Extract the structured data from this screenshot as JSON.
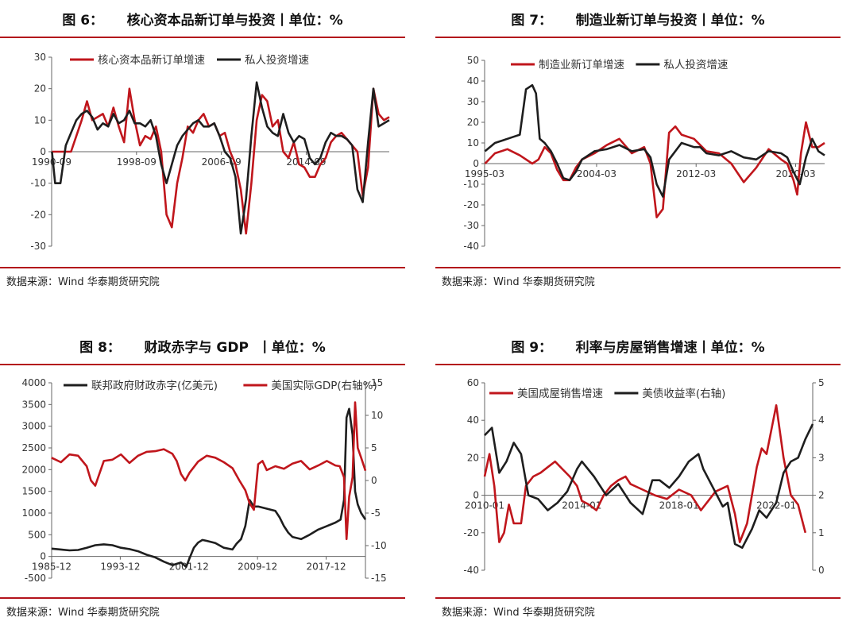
{
  "source_label": "数据来源：Wind 华泰期货研究院",
  "colors": {
    "red": "#c0161c",
    "black": "#1e1e1e",
    "rule": "#b3141b"
  },
  "chart_data": [
    {
      "id": "fig6",
      "type": "line",
      "title": "图 6：     核心资本品新订单与投资丨单位：%",
      "x_ticks": [
        "1990-09",
        "1998-09",
        "2006-09",
        "2014-09"
      ],
      "x_range": [
        1990.67,
        2022.5
      ],
      "x_tick_pos": [
        1990.67,
        1998.67,
        2006.67,
        2014.67
      ],
      "ylim": [
        -30,
        30
      ],
      "y_ticks": [
        -30,
        -20,
        -10,
        0,
        10,
        20,
        30
      ],
      "legend": "top-left",
      "series": [
        {
          "name": "核心资本品新订单增速",
          "color": "#c0161c",
          "axis": "left",
          "x": [
            1990.7,
            1991.5,
            1992.0,
            1992.5,
            1993.0,
            1993.5,
            1994.0,
            1994.5,
            1995.0,
            1995.5,
            1996.0,
            1996.5,
            1997.0,
            1997.5,
            1998.0,
            1998.5,
            1999.0,
            1999.5,
            2000.0,
            2000.5,
            2001.0,
            2001.5,
            2002.0,
            2002.5,
            2003.0,
            2003.5,
            2004.0,
            2004.5,
            2005.0,
            2005.5,
            2006.0,
            2006.5,
            2007.0,
            2007.5,
            2008.0,
            2008.5,
            2009.0,
            2009.5,
            2010.0,
            2010.5,
            2011.0,
            2011.5,
            2012.0,
            2012.5,
            2013.0,
            2013.5,
            2014.0,
            2014.5,
            2015.0,
            2015.5,
            2016.0,
            2016.5,
            2017.0,
            2017.5,
            2018.0,
            2018.5,
            2019.0,
            2019.5,
            2020.0,
            2020.5,
            2021.0,
            2021.5,
            2022.0,
            2022.5
          ],
          "y": [
            0,
            0,
            0,
            0,
            5,
            10,
            16,
            10,
            11,
            12,
            8,
            14,
            8,
            3,
            20,
            10,
            2,
            5,
            4,
            8,
            0,
            -20,
            -24,
            -10,
            -2,
            8,
            6,
            10,
            12,
            8,
            9,
            5,
            6,
            0,
            -4,
            -12,
            -26,
            -10,
            10,
            18,
            16,
            8,
            10,
            0,
            -2,
            3,
            -4,
            -5,
            -8,
            -8,
            -4,
            -2,
            3,
            5,
            6,
            4,
            2,
            0,
            -14,
            -5,
            20,
            12,
            10,
            11
          ]
        },
        {
          "name": "私人投资增速",
          "color": "#1e1e1e",
          "axis": "left",
          "x": [
            1990.7,
            1991.0,
            1991.5,
            1992.0,
            1992.5,
            1993.0,
            1993.5,
            1994.0,
            1994.5,
            1995.0,
            1995.5,
            1996.0,
            1996.5,
            1997.0,
            1997.5,
            1998.0,
            1998.5,
            1999.0,
            1999.5,
            2000.0,
            2000.5,
            2001.0,
            2001.5,
            2002.0,
            2002.5,
            2003.0,
            2003.5,
            2004.0,
            2004.5,
            2005.0,
            2005.5,
            2006.0,
            2006.5,
            2007.0,
            2007.5,
            2008.0,
            2008.5,
            2009.0,
            2009.5,
            2010.0,
            2010.5,
            2011.0,
            2011.5,
            2012.0,
            2012.5,
            2013.0,
            2013.5,
            2014.0,
            2014.5,
            2015.0,
            2015.5,
            2016.0,
            2016.5,
            2017.0,
            2017.5,
            2018.0,
            2018.5,
            2019.0,
            2019.5,
            2020.0,
            2020.5,
            2021.0,
            2021.5,
            2022.0,
            2022.5
          ],
          "y": [
            0,
            -10,
            -10,
            2,
            6,
            10,
            12,
            13,
            11,
            7,
            9,
            8,
            12,
            9,
            10,
            13,
            9,
            9,
            8,
            10,
            5,
            -4,
            -10,
            -4,
            2,
            5,
            7,
            9,
            10,
            8,
            8,
            9,
            5,
            0,
            -2,
            -8,
            -26,
            -15,
            5,
            22,
            14,
            8,
            6,
            5,
            12,
            6,
            3,
            5,
            4,
            -2,
            -4,
            -2,
            3,
            6,
            5,
            5,
            4,
            2,
            -12,
            -16,
            3,
            20,
            8,
            9,
            10
          ]
        }
      ]
    },
    {
      "id": "fig7",
      "type": "line",
      "title": "图 7：     制造业新订单与投资丨单位：%",
      "x_ticks": [
        "1995-03",
        "2004-03",
        "2012-03",
        "2020-03"
      ],
      "x_range": [
        1995.17,
        2022.5
      ],
      "x_tick_pos": [
        1995.17,
        2004.17,
        2012.17,
        2020.17
      ],
      "ylim": [
        -40,
        50
      ],
      "y_ticks": [
        -40,
        -30,
        -20,
        -10,
        0,
        10,
        20,
        30,
        40,
        50
      ],
      "legend": "top-left",
      "series": [
        {
          "name": "制造业新订单增速",
          "color": "#c0161c",
          "axis": "left",
          "x": [
            1995.2,
            1996.0,
            1997.0,
            1998.0,
            1999.0,
            1999.5,
            2000.0,
            2000.5,
            2001.0,
            2001.5,
            2002.0,
            2002.5,
            2003.0,
            2004.0,
            2005.0,
            2006.0,
            2007.0,
            2008.0,
            2008.5,
            2009.0,
            2009.5,
            2010.0,
            2010.5,
            2011.0,
            2012.0,
            2013.0,
            2014.0,
            2015.0,
            2016.0,
            2017.0,
            2018.0,
            2019.0,
            2019.5,
            2020.0,
            2020.3,
            2020.6,
            2021.0,
            2021.5,
            2022.0,
            2022.5
          ],
          "y": [
            0,
            5,
            7,
            4,
            0,
            2,
            8,
            5,
            -3,
            -8,
            -8,
            -2,
            2,
            5,
            9,
            12,
            5,
            8,
            0,
            -26,
            -22,
            15,
            18,
            14,
            12,
            6,
            5,
            0,
            -9,
            -2,
            7,
            2,
            0,
            -8,
            -15,
            5,
            20,
            8,
            8,
            10
          ]
        },
        {
          "name": "私人投资增速",
          "color": "#1e1e1e",
          "axis": "left",
          "x": [
            1995.2,
            1996.0,
            1997.0,
            1997.5,
            1998.0,
            1998.5,
            1999.0,
            1999.3,
            1999.6,
            2000.0,
            2000.5,
            2001.0,
            2001.5,
            2002.0,
            2002.5,
            2003.0,
            2004.0,
            2005.0,
            2006.0,
            2007.0,
            2008.0,
            2008.5,
            2009.0,
            2009.5,
            2010.0,
            2011.0,
            2012.0,
            2012.5,
            2013.0,
            2014.0,
            2015.0,
            2016.0,
            2017.0,
            2018.0,
            2019.0,
            2019.5,
            2020.0,
            2020.5,
            2021.0,
            2021.5,
            2022.0,
            2022.5
          ],
          "y": [
            6,
            10,
            12,
            13,
            14,
            36,
            38,
            34,
            12,
            10,
            6,
            0,
            -7,
            -8,
            -4,
            2,
            6,
            7,
            9,
            6,
            7,
            3,
            -10,
            -16,
            2,
            10,
            8,
            8,
            5,
            4,
            6,
            3,
            2,
            6,
            5,
            3,
            -4,
            -10,
            3,
            12,
            6,
            4
          ]
        }
      ]
    },
    {
      "id": "fig8",
      "type": "line",
      "title": "图 8：     财政赤字与 GDP  丨单位：%",
      "x_ticks": [
        "1985-12",
        "1993-12",
        "2001-12",
        "2009-12",
        "2017-12"
      ],
      "x_range": [
        1985.92,
        2022.5
      ],
      "x_tick_pos": [
        1985.92,
        1993.92,
        2001.92,
        2009.92,
        2017.92
      ],
      "ylim": [
        -500,
        4000
      ],
      "y_ticks": [
        -500,
        0,
        500,
        1000,
        1500,
        2000,
        2500,
        3000,
        3500,
        4000
      ],
      "y2lim": [
        -15,
        15
      ],
      "y2_ticks": [
        -15,
        -10,
        -5,
        0,
        5,
        10,
        15
      ],
      "legend": "top-left",
      "series": [
        {
          "name": "联邦政府财政赤字(亿美元)",
          "color": "#1e1e1e",
          "axis": "left",
          "x": [
            1985.9,
            1987.0,
            1988.0,
            1989.0,
            1990.0,
            1991.0,
            1992.0,
            1993.0,
            1994.0,
            1995.0,
            1996.0,
            1997.0,
            1998.0,
            1999.0,
            2000.0,
            2001.0,
            2001.6,
            2002.0,
            2002.5,
            2003.0,
            2003.5,
            2004.0,
            2005.0,
            2006.0,
            2007.0,
            2007.5,
            2008.0,
            2008.5,
            2009.0,
            2009.5,
            2010.0,
            2011.0,
            2012.0,
            2012.5,
            2013.0,
            2013.5,
            2014.0,
            2015.0,
            2016.0,
            2017.0,
            2018.0,
            2019.0,
            2019.6,
            2020.0,
            2020.3,
            2020.6,
            2021.0,
            2021.3,
            2021.6,
            2022.0,
            2022.5
          ],
          "y": [
            180,
            160,
            140,
            150,
            200,
            260,
            280,
            260,
            200,
            170,
            120,
            40,
            -20,
            -120,
            -200,
            -140,
            -240,
            -40,
            200,
            320,
            380,
            360,
            310,
            200,
            160,
            300,
            400,
            700,
            1300,
            1150,
            1150,
            1100,
            1050,
            900,
            700,
            550,
            450,
            400,
            500,
            620,
            700,
            780,
            850,
            1300,
            3200,
            3400,
            2800,
            1500,
            1200,
            1000,
            850
          ]
        },
        {
          "name": "美国实际GDP(右轴%)",
          "color": "#c0161c",
          "axis": "right",
          "x": [
            1985.9,
            1987.0,
            1988.0,
            1989.0,
            1990.0,
            1990.5,
            1991.0,
            1992.0,
            1993.0,
            1994.0,
            1995.0,
            1996.0,
            1997.0,
            1998.0,
            1999.0,
            2000.0,
            2000.5,
            2001.0,
            2001.5,
            2002.0,
            2003.0,
            2004.0,
            2005.0,
            2006.0,
            2007.0,
            2007.8,
            2008.5,
            2009.0,
            2009.5,
            2010.0,
            2010.5,
            2011.0,
            2012.0,
            2013.0,
            2014.0,
            2015.0,
            2016.0,
            2017.0,
            2018.0,
            2019.0,
            2019.5,
            2020.0,
            2020.3,
            2020.6,
            2021.0,
            2021.3,
            2021.6,
            2022.0,
            2022.5
          ],
          "y": [
            3.5,
            2.8,
            4.0,
            3.8,
            2.2,
            0,
            -0.8,
            3.0,
            3.2,
            4.0,
            2.7,
            3.8,
            4.4,
            4.5,
            4.8,
            4.1,
            3.0,
            1.0,
            0,
            1.2,
            2.9,
            3.8,
            3.5,
            2.8,
            1.9,
            0,
            -1.5,
            -3.5,
            -4.5,
            2.5,
            3.0,
            1.6,
            2.2,
            1.8,
            2.6,
            3.0,
            1.7,
            2.3,
            3.0,
            2.3,
            2.2,
            0.5,
            -9.0,
            -2.5,
            0.5,
            12.0,
            5.0,
            3.5,
            1.5
          ]
        }
      ]
    },
    {
      "id": "fig9",
      "type": "line",
      "title": "图 9：     利率与房屋销售增速丨单位：%",
      "x_ticks": [
        "2010-01",
        "2014-01",
        "2018-01",
        "2022-01"
      ],
      "x_range": [
        2010.0,
        2023.5
      ],
      "x_tick_pos": [
        2010.0,
        2014.0,
        2018.0,
        2022.0
      ],
      "ylim": [
        -40,
        60
      ],
      "y_ticks": [
        -40,
        -20,
        0,
        20,
        40,
        60
      ],
      "y2lim": [
        0,
        5
      ],
      "y2_ticks": [
        0,
        1,
        2,
        3,
        4,
        5
      ],
      "legend": "top-left",
      "series": [
        {
          "name": "美国成屋销售增速",
          "color": "#c0161c",
          "axis": "left",
          "x": [
            2010.0,
            2010.2,
            2010.4,
            2010.6,
            2010.8,
            2011.0,
            2011.2,
            2011.5,
            2011.7,
            2012.0,
            2012.3,
            2012.6,
            2012.9,
            2013.2,
            2013.5,
            2013.8,
            2014.0,
            2014.3,
            2014.6,
            2014.9,
            2015.2,
            2015.5,
            2015.8,
            2016.0,
            2016.5,
            2017.0,
            2017.5,
            2018.0,
            2018.5,
            2018.9,
            2019.2,
            2019.5,
            2020.0,
            2020.3,
            2020.5,
            2020.8,
            2021.0,
            2021.2,
            2021.4,
            2021.6,
            2022.0,
            2022.3,
            2022.6,
            2022.9,
            2023.2
          ],
          "y": [
            10,
            22,
            5,
            -25,
            -20,
            -5,
            -15,
            -15,
            5,
            10,
            12,
            15,
            18,
            14,
            10,
            5,
            -3,
            -5,
            -8,
            0,
            5,
            8,
            10,
            6,
            3,
            0,
            -2,
            3,
            0,
            -8,
            -3,
            2,
            5,
            -10,
            -25,
            -15,
            0,
            15,
            25,
            22,
            48,
            20,
            0,
            -5,
            -20
          ]
        },
        {
          "name": "美债收益率(右轴)",
          "color": "#1e1e1e",
          "axis": "right",
          "x": [
            2010.0,
            2010.3,
            2010.6,
            2010.9,
            2011.2,
            2011.5,
            2011.8,
            2012.2,
            2012.6,
            2013.0,
            2013.4,
            2013.8,
            2014.0,
            2014.5,
            2015.0,
            2015.5,
            2016.0,
            2016.5,
            2016.9,
            2017.2,
            2017.6,
            2018.0,
            2018.4,
            2018.8,
            2019.0,
            2019.4,
            2019.8,
            2020.0,
            2020.3,
            2020.6,
            2021.0,
            2021.3,
            2021.6,
            2022.0,
            2022.3,
            2022.6,
            2022.9,
            2023.2,
            2023.5
          ],
          "y": [
            3.6,
            3.8,
            2.6,
            2.9,
            3.4,
            3.1,
            2.0,
            1.9,
            1.6,
            1.8,
            2.1,
            2.7,
            2.9,
            2.5,
            2.0,
            2.3,
            1.8,
            1.5,
            2.4,
            2.4,
            2.2,
            2.5,
            2.9,
            3.1,
            2.7,
            2.2,
            1.7,
            1.8,
            0.7,
            0.6,
            1.1,
            1.6,
            1.4,
            1.8,
            2.6,
            2.9,
            3.0,
            3.5,
            3.9
          ]
        }
      ]
    }
  ]
}
